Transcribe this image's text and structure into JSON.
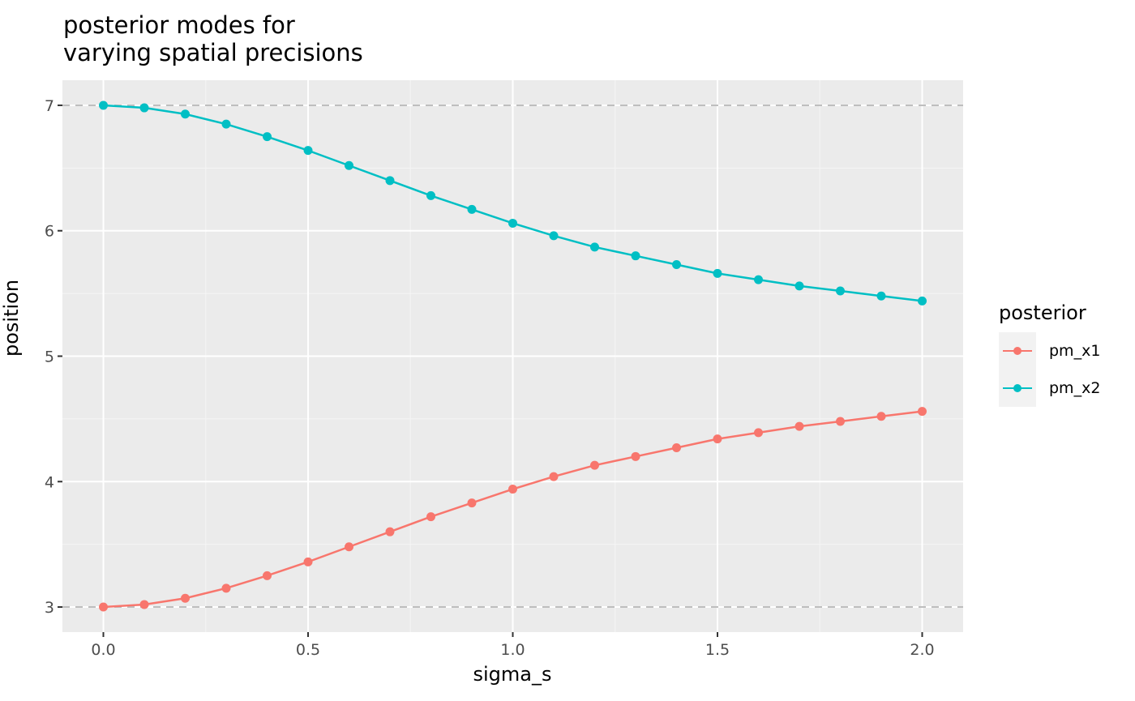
{
  "chart_data": {
    "type": "line",
    "title": "posterior modes for\nvarying spatial precisions",
    "title_lines": [
      "posterior modes for",
      "varying spatial precisions"
    ],
    "xlabel": "sigma_s",
    "ylabel": "position",
    "xlim": [
      -0.1,
      2.1
    ],
    "ylim": [
      2.8,
      7.2
    ],
    "x_ticks": [
      0.0,
      0.5,
      1.0,
      1.5,
      2.0
    ],
    "x_tick_labels": [
      "0.0",
      "0.5",
      "1.0",
      "1.5",
      "2.0"
    ],
    "y_ticks": [
      3,
      4,
      5,
      6,
      7
    ],
    "y_tick_labels": [
      "3",
      "4",
      "5",
      "6",
      "7"
    ],
    "grid": true,
    "reference_lines": [
      {
        "y": 3,
        "style": "dashed",
        "color": "#bebebe"
      },
      {
        "y": 7,
        "style": "dashed",
        "color": "#bebebe"
      }
    ],
    "legend": {
      "title": "posterior",
      "position": "right"
    },
    "x": [
      0.0,
      0.1,
      0.2,
      0.3,
      0.4,
      0.5,
      0.6,
      0.7,
      0.8,
      0.9,
      1.0,
      1.1,
      1.2,
      1.3,
      1.4,
      1.5,
      1.6,
      1.7,
      1.8,
      1.9,
      2.0
    ],
    "series": [
      {
        "name": "pm_x1",
        "color": "#F8766D",
        "values": [
          3.0,
          3.02,
          3.07,
          3.15,
          3.25,
          3.36,
          3.48,
          3.6,
          3.72,
          3.83,
          3.94,
          4.04,
          4.13,
          4.2,
          4.27,
          4.34,
          4.39,
          4.44,
          4.48,
          4.52,
          4.56
        ]
      },
      {
        "name": "pm_x2",
        "color": "#00BFC4",
        "values": [
          7.0,
          6.98,
          6.93,
          6.85,
          6.75,
          6.64,
          6.52,
          6.4,
          6.28,
          6.17,
          6.06,
          5.96,
          5.87,
          5.8,
          5.73,
          5.66,
          5.61,
          5.56,
          5.52,
          5.48,
          5.44
        ]
      }
    ]
  },
  "colors": {
    "panel_bg": "#ebebeb",
    "grid_major": "#ffffff",
    "grid_minor": "#f5f5f5",
    "axis_text": "#4d4d4d",
    "tick": "#333333",
    "ref_line": "#bebebe"
  }
}
